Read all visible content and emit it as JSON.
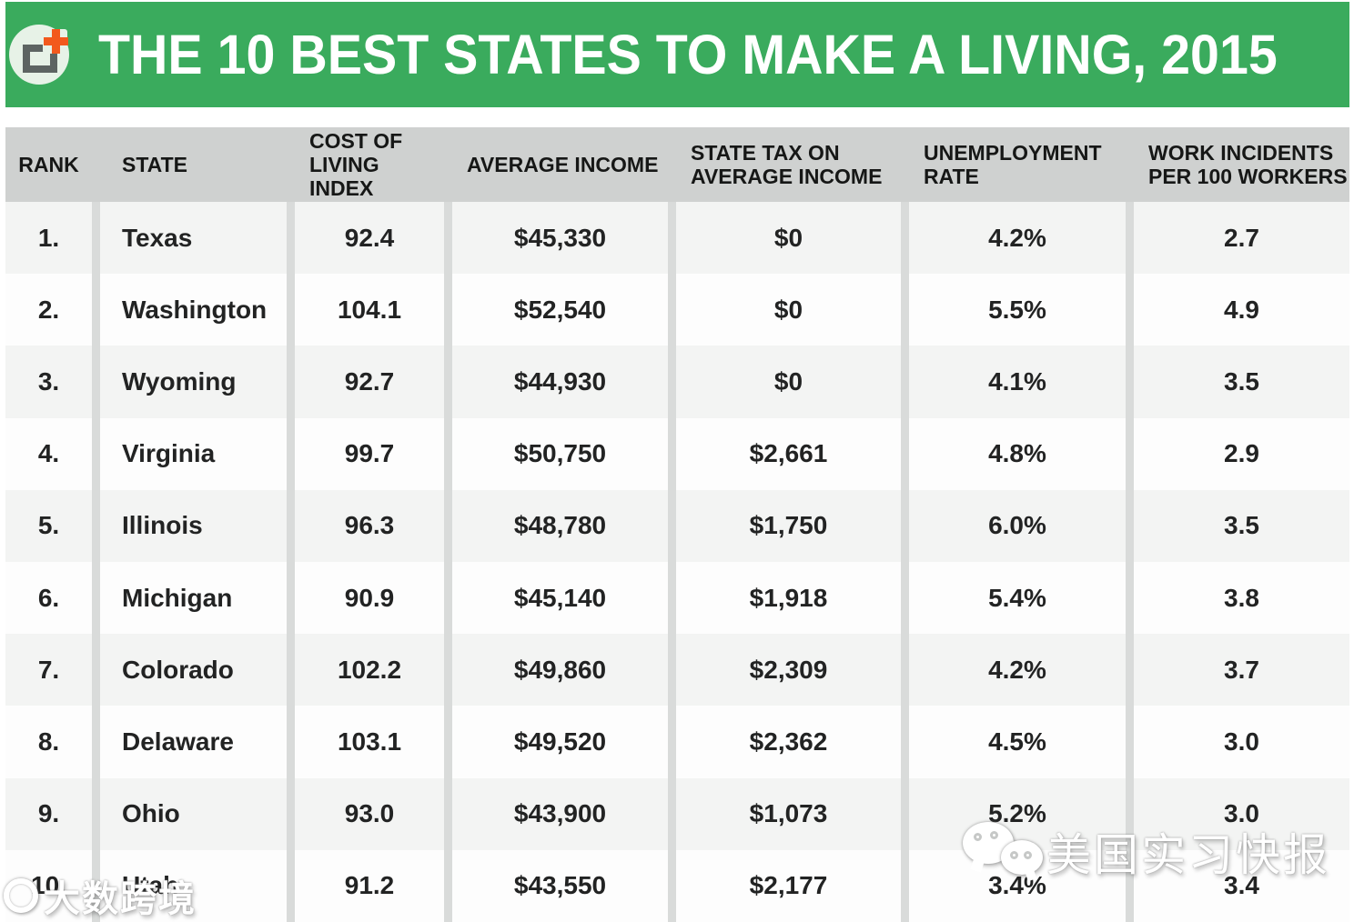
{
  "header": {
    "title": "THE 10 BEST STATES TO MAKE A LIVING, 2015",
    "logo_icon": "add-screen-plus-icon"
  },
  "colors": {
    "banner_green": "#3aab5d",
    "header_gray": "#cfd1d0",
    "stripe_gray": "#f3f4f3",
    "row_white": "#fdfdfd",
    "divider_gray": "#d9dbda",
    "accent_orange": "#f2591d",
    "text_dark": "#222323"
  },
  "watermarks": {
    "wechat_icon": "wechat-icon",
    "wechat_text": "美国实习快报",
    "corner_text": "大数跨境"
  },
  "chart_data": {
    "type": "table",
    "title": "THE 10 BEST STATES TO MAKE A LIVING, 2015",
    "columns": [
      "RANK",
      "STATE",
      "COST OF LIVING INDEX",
      "AVERAGE INCOME",
      "STATE TAX ON AVERAGE INCOME",
      "UNEMPLOYMENT RATE",
      "WORK INCIDENTS PER 100 WORKERS"
    ],
    "rows": [
      {
        "rank": "1.",
        "state": "Texas",
        "cost_of_living_index": "92.4",
        "average_income": "$45,330",
        "state_tax_on_average_income": "$0",
        "unemployment_rate": "4.2%",
        "work_incidents_per_100_workers": "2.7"
      },
      {
        "rank": "2.",
        "state": "Washington",
        "cost_of_living_index": "104.1",
        "average_income": "$52,540",
        "state_tax_on_average_income": "$0",
        "unemployment_rate": "5.5%",
        "work_incidents_per_100_workers": "4.9"
      },
      {
        "rank": "3.",
        "state": "Wyoming",
        "cost_of_living_index": "92.7",
        "average_income": "$44,930",
        "state_tax_on_average_income": "$0",
        "unemployment_rate": "4.1%",
        "work_incidents_per_100_workers": "3.5"
      },
      {
        "rank": "4.",
        "state": "Virginia",
        "cost_of_living_index": "99.7",
        "average_income": "$50,750",
        "state_tax_on_average_income": "$2,661",
        "unemployment_rate": "4.8%",
        "work_incidents_per_100_workers": "2.9"
      },
      {
        "rank": "5.",
        "state": "Illinois",
        "cost_of_living_index": "96.3",
        "average_income": "$48,780",
        "state_tax_on_average_income": "$1,750",
        "unemployment_rate": "6.0%",
        "work_incidents_per_100_workers": "3.5"
      },
      {
        "rank": "6.",
        "state": "Michigan",
        "cost_of_living_index": "90.9",
        "average_income": "$45,140",
        "state_tax_on_average_income": "$1,918",
        "unemployment_rate": "5.4%",
        "work_incidents_per_100_workers": "3.8"
      },
      {
        "rank": "7.",
        "state": "Colorado",
        "cost_of_living_index": "102.2",
        "average_income": "$49,860",
        "state_tax_on_average_income": "$2,309",
        "unemployment_rate": "4.2%",
        "work_incidents_per_100_workers": "3.7"
      },
      {
        "rank": "8.",
        "state": "Delaware",
        "cost_of_living_index": "103.1",
        "average_income": "$49,520",
        "state_tax_on_average_income": "$2,362",
        "unemployment_rate": "4.5%",
        "work_incidents_per_100_workers": "3.0"
      },
      {
        "rank": "9.",
        "state": "Ohio",
        "cost_of_living_index": "93.0",
        "average_income": "$43,900",
        "state_tax_on_average_income": "$1,073",
        "unemployment_rate": "5.2%",
        "work_incidents_per_100_workers": "3.0"
      },
      {
        "rank": "10.",
        "state": "Utah",
        "cost_of_living_index": "91.2",
        "average_income": "$43,550",
        "state_tax_on_average_income": "$2,177",
        "unemployment_rate": "3.4%",
        "work_incidents_per_100_workers": "3.4"
      }
    ]
  }
}
